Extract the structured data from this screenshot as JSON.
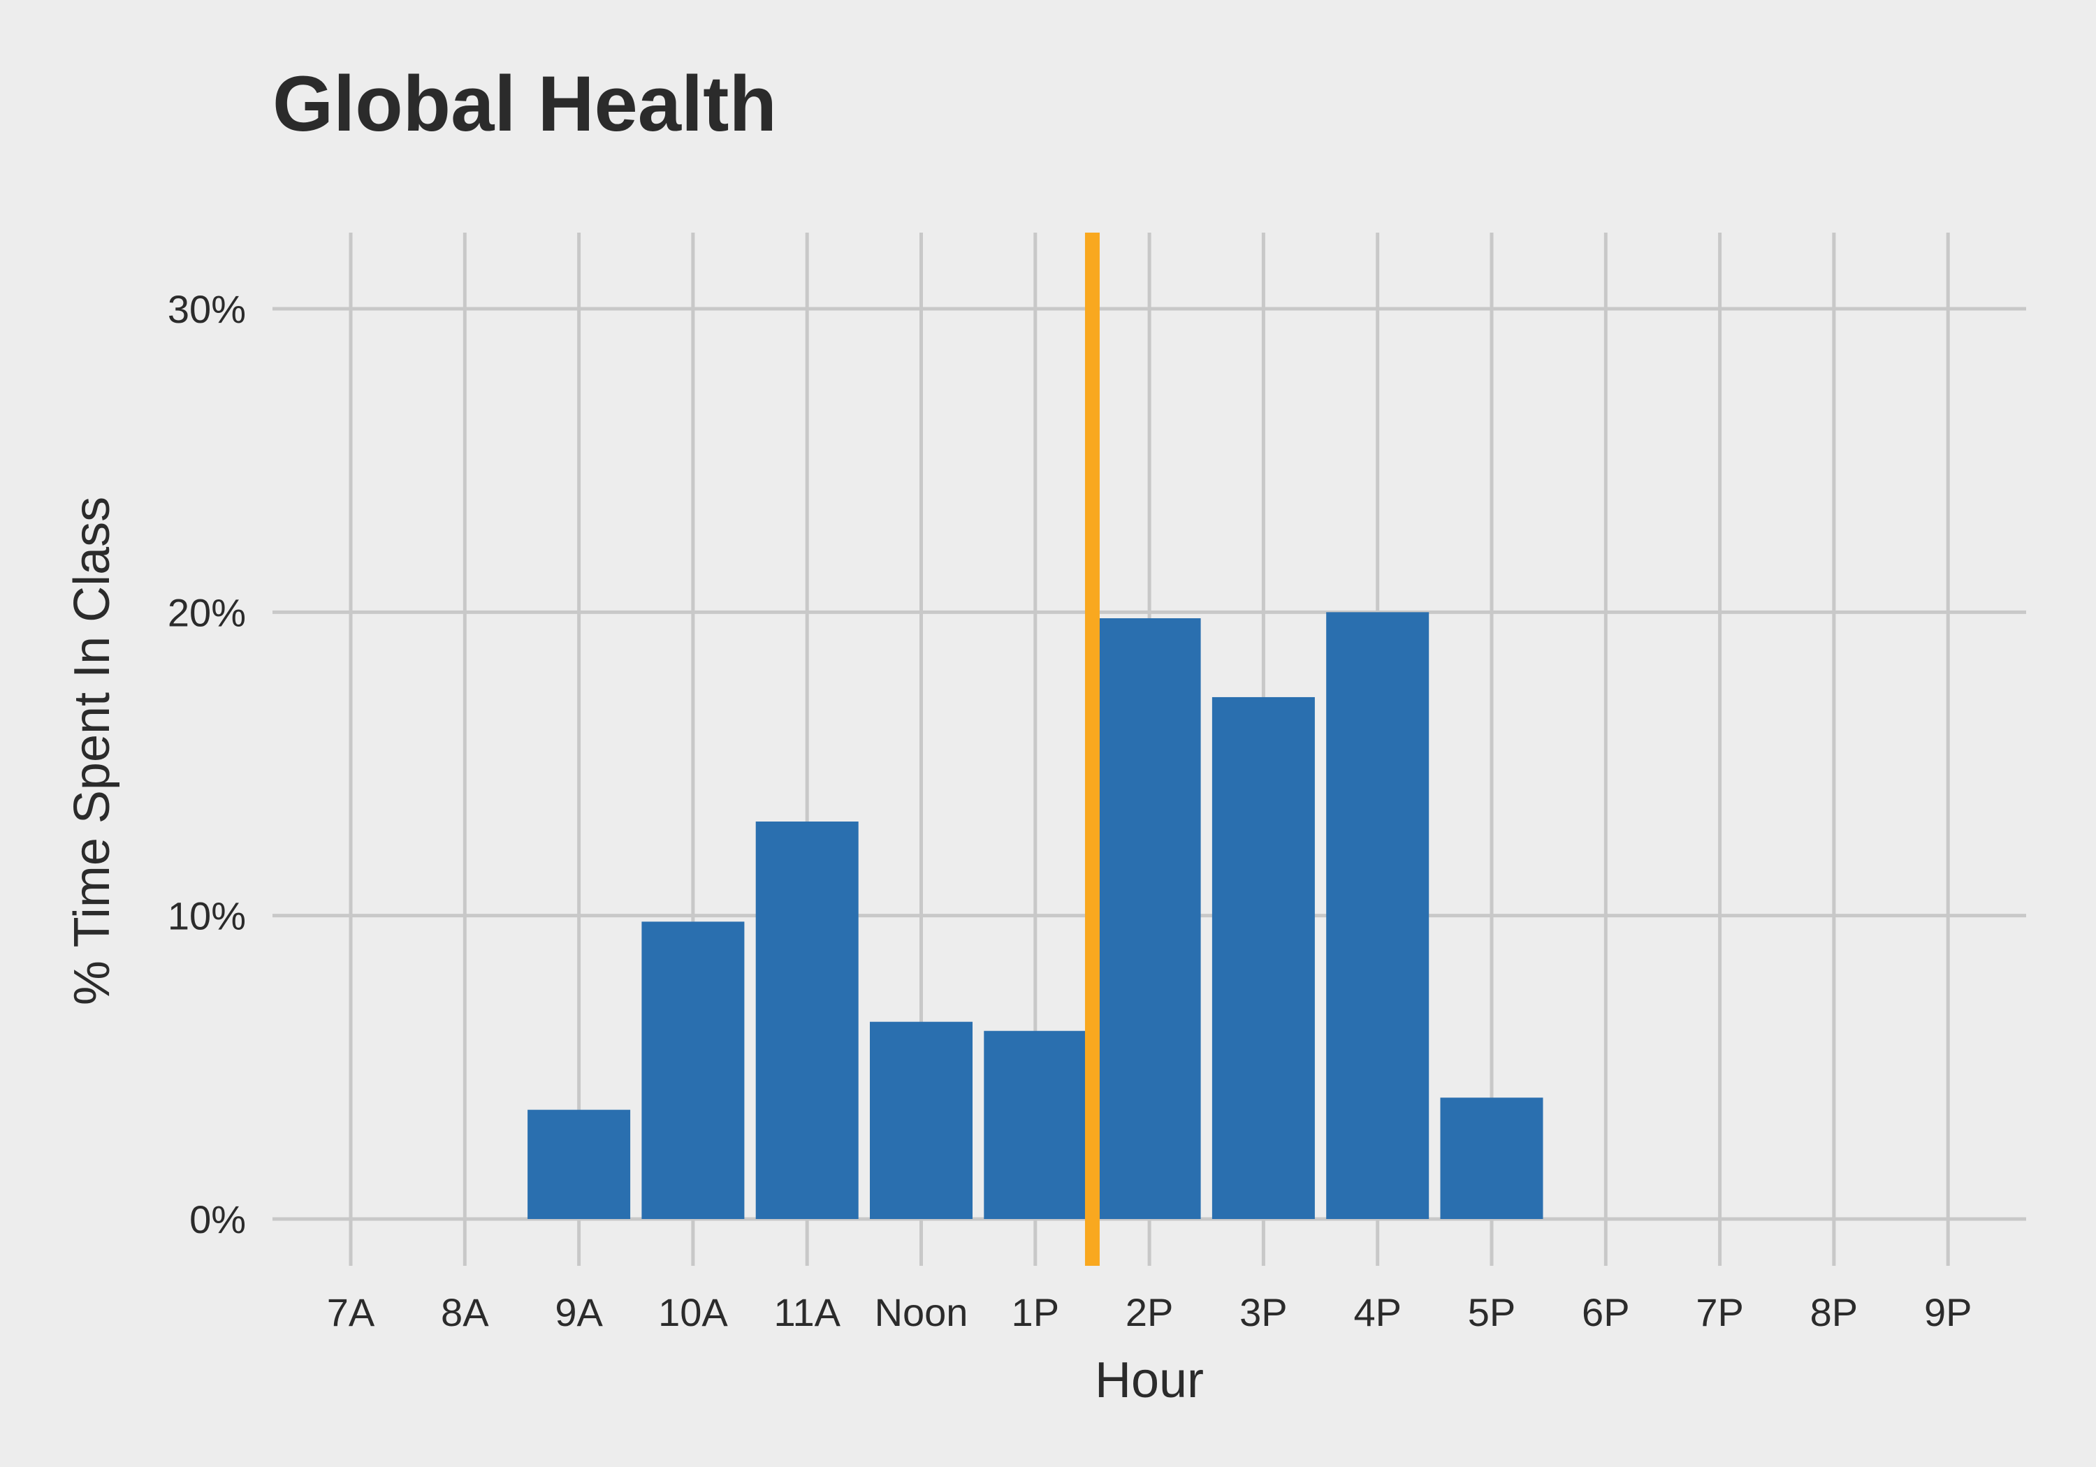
{
  "chart_data": {
    "type": "bar",
    "title": "Global Health",
    "xlabel": "Hour",
    "ylabel": "% Time Spent In Class",
    "categories": [
      "7A",
      "8A",
      "9A",
      "10A",
      "11A",
      "Noon",
      "1P",
      "2P",
      "3P",
      "4P",
      "5P",
      "6P",
      "7P",
      "8P",
      "9P"
    ],
    "values": [
      0,
      0,
      3.6,
      9.8,
      13.1,
      6.5,
      6.2,
      19.8,
      17.2,
      20.0,
      4.0,
      0,
      0,
      0,
      0
    ],
    "value_unit": "%",
    "ylim": [
      0,
      32.5
    ],
    "yticks": [
      0,
      10,
      20,
      30
    ],
    "ytick_labels": [
      "0%",
      "10%",
      "20%",
      "30%"
    ],
    "grid": true,
    "reference_line": {
      "x_between": [
        "1P",
        "2P"
      ],
      "color": "#f9a81f"
    },
    "bar_color": "#2a6faf",
    "background_color": "#ededed",
    "grid_color": "#c8c8c8"
  }
}
